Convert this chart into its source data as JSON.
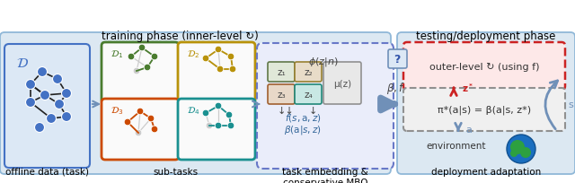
{
  "title_train": "training phase (inner-level ↻)",
  "title_test": "testing/deployment phase",
  "label_offline": "offline data (task)",
  "label_subtasks": "sub-tasks",
  "label_embedding": "task embedding &\nconservative MBO",
  "label_deployment": "deployment adaptation",
  "outer_level_text": "outer-level ↻ (using f)",
  "policy_text": "π*(a|s) = β(a|s, z*)",
  "env_text": "environment",
  "subtask_colors": [
    "#4a7c2f",
    "#b8920a",
    "#cc4a00",
    "#1a9090"
  ],
  "node_blue": "#4472c4",
  "arrow_blue": "#7090b8",
  "train_box_fc": "#dce8f2",
  "train_box_ec": "#90b8d8",
  "test_box_fc": "#dce8f2",
  "test_box_ec": "#90b8d8",
  "dataset_fc": "#dce8f5",
  "dataset_ec": "#4472c4",
  "embed_fc": "#eaedfa",
  "embed_ec": "#6878c8",
  "outer_fc": "#fde8e8",
  "outer_ec": "#cc2222",
  "pi_fc": "#f0f0f0",
  "pi_ec": "#909090",
  "z1_fc": "#e0e8d8",
  "z1_ec": "#607848",
  "z2_fc": "#e8dcc8",
  "z2_ec": "#988030",
  "z3_fc": "#e8d8c8",
  "z3_ec": "#a06030",
  "z4_fc": "#c8e8e4",
  "z4_ec": "#208878",
  "mu_fc": "#e8e8e8",
  "mu_ec": "#909090",
  "qmark_fc": "#dce8f5",
  "qmark_ec": "#7090b8"
}
